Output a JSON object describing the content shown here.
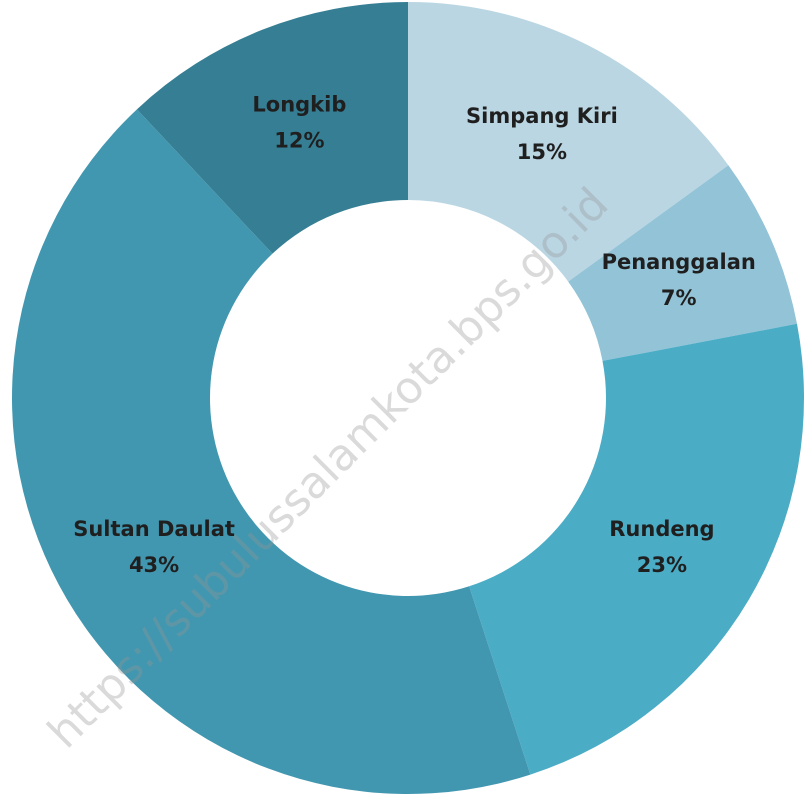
{
  "chart_data": {
    "type": "donut",
    "categories": [
      "Simpang Kiri",
      "Penanggalan",
      "Rundeng",
      "Sultan Daulat",
      "Longkib"
    ],
    "values": [
      15,
      7,
      23,
      43,
      12
    ],
    "value_labels": [
      "15%",
      "7%",
      "23%",
      "43%",
      "12%"
    ],
    "colors": [
      "#bad6e3",
      "#92c3d6",
      "#4bacc6",
      "#4297b0",
      "#357e93"
    ],
    "watermark": "https://subulussalamkota.bps.go.id"
  }
}
